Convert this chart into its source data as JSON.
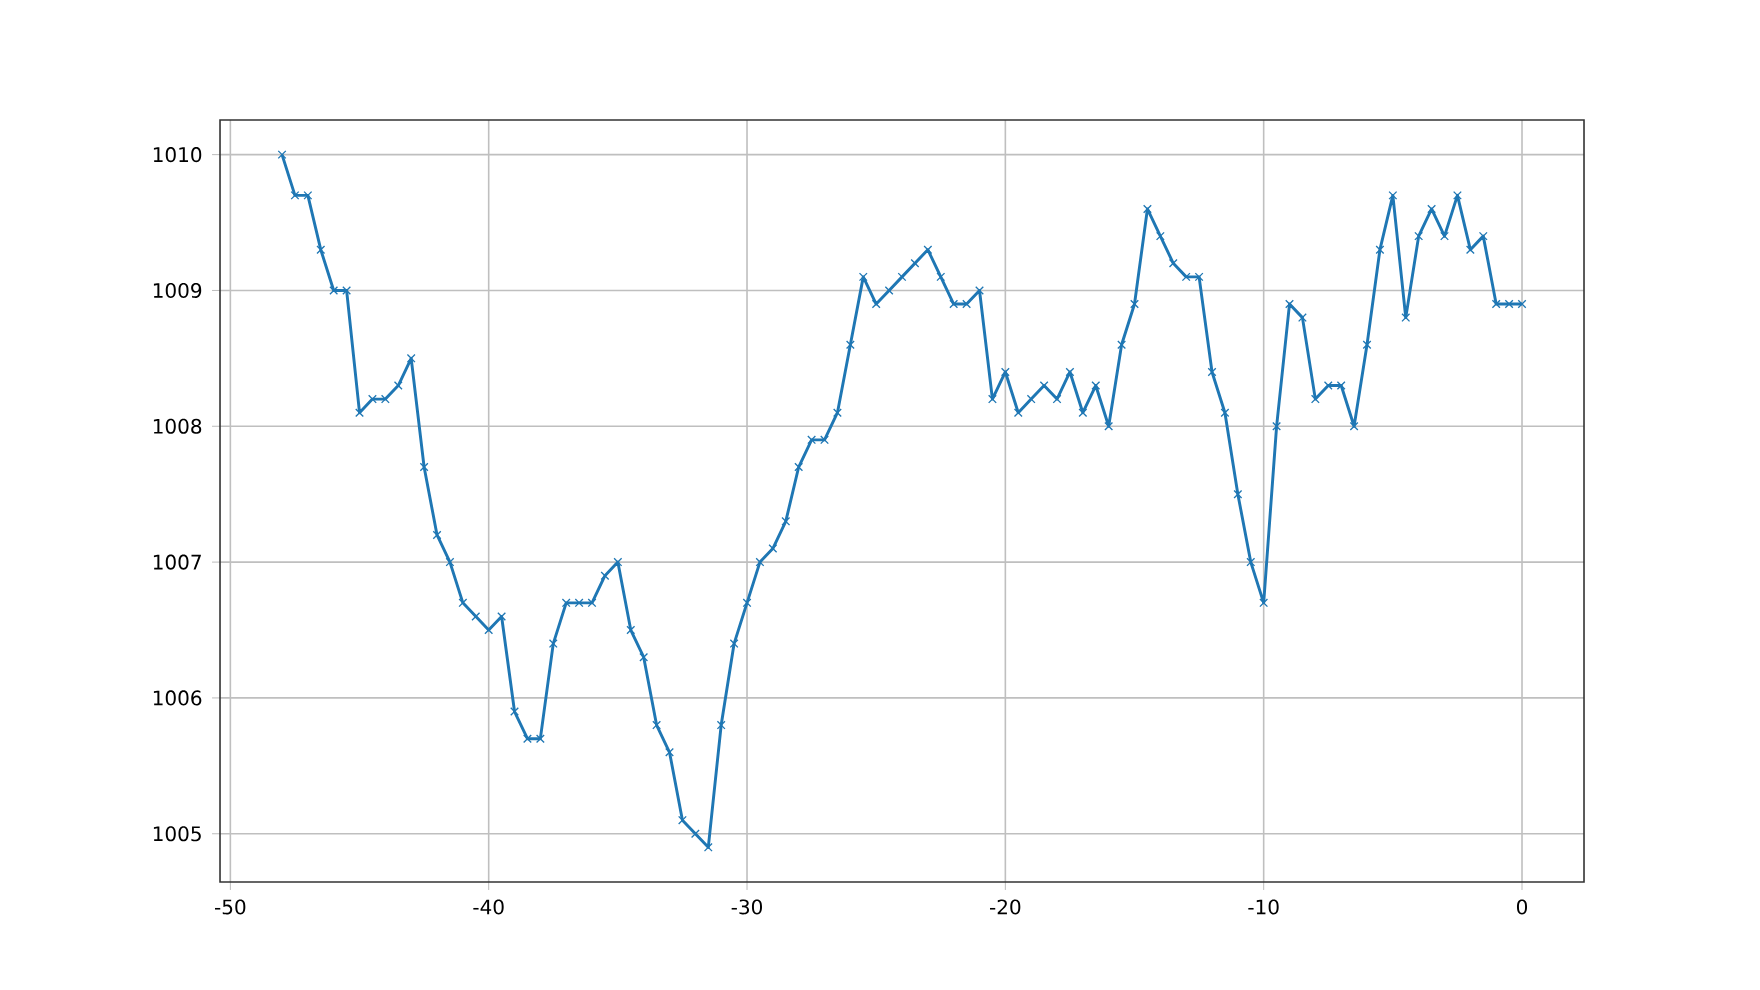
{
  "chart_data": {
    "type": "line",
    "x": [
      -48,
      -47.5,
      -47,
      -46.5,
      -46,
      -45.5,
      -45,
      -44.5,
      -44,
      -43.5,
      -43,
      -42.5,
      -42,
      -41.5,
      -41,
      -40.5,
      -40,
      -39.5,
      -39,
      -38.5,
      -38,
      -37.5,
      -37,
      -36.5,
      -36,
      -35.5,
      -35,
      -34.5,
      -34,
      -33.5,
      -33,
      -32.5,
      -32,
      -31.5,
      -31,
      -30.5,
      -30,
      -29.5,
      -29,
      -28.5,
      -28,
      -27.5,
      -27,
      -26.5,
      -26,
      -25.5,
      -25,
      -24.5,
      -24,
      -23.5,
      -23,
      -22.5,
      -22,
      -21.5,
      -21,
      -20.5,
      -20,
      -19.5,
      -19,
      -18.5,
      -18,
      -17.5,
      -17,
      -16.5,
      -16,
      -15.5,
      -15,
      -14.5,
      -14,
      -13.5,
      -13,
      -12.5,
      -12,
      -11.5,
      -11,
      -10.5,
      -10,
      -9.5,
      -9,
      -8.5,
      -8,
      -7.5,
      -7,
      -6.5,
      -6,
      -5.5,
      -5,
      -4.5,
      -4,
      -3.5,
      -3,
      -2.5,
      -2,
      -1.5,
      -1,
      -0.5,
      0
    ],
    "series": [
      {
        "color": "#1f77b4",
        "values": [
          1010,
          1009.7,
          1009.7,
          1009.3,
          1009.0,
          1009.0,
          1008.1,
          1008.2,
          1008.2,
          1008.3,
          1008.5,
          1007.7,
          1007.2,
          1007.0,
          1006.7,
          1006.6,
          1006.5,
          1006.6,
          1005.9,
          1005.7,
          1005.7,
          1006.4,
          1006.7,
          1006.7,
          1006.7,
          1006.9,
          1007.0,
          1006.5,
          1006.3,
          1005.8,
          1005.6,
          1005.1,
          1005.0,
          1004.9,
          1005.8,
          1006.4,
          1006.7,
          1007.0,
          1007.1,
          1007.3,
          1007.7,
          1007.9,
          1007.9,
          1008.1,
          1008.6,
          1009.1,
          1008.9,
          1009.0,
          1009.1,
          1009.2,
          1009.3,
          1009.1,
          1008.9,
          1008.9,
          1009.0,
          1008.2,
          1008.4,
          1008.1,
          1008.2,
          1008.3,
          1008.2,
          1008.4,
          1008.1,
          1008.3,
          1008.0,
          1008.6,
          1008.9,
          1009.6,
          1009.4,
          1009.2,
          1009.1,
          1009.1,
          1008.4,
          1008.1,
          1007.5,
          1007.0,
          1006.7,
          1008.0,
          1008.9,
          1008.8,
          1008.2,
          1008.3,
          1008.3,
          1008.0,
          1008.6,
          1009.3,
          1009.7,
          1008.8,
          1009.4,
          1009.6,
          1009.4,
          1009.7,
          1009.3,
          1009.4,
          1008.9,
          1008.9,
          1008.9
        ]
      }
    ],
    "xlim": [
      -50.4,
      2.4
    ],
    "ylim": [
      1004.645,
      1010.255
    ],
    "xticks": [
      -50,
      -40,
      -30,
      -20,
      -10,
      0
    ],
    "yticks": [
      1005,
      1006,
      1007,
      1008,
      1009,
      1010
    ],
    "grid": true,
    "marker": "cross",
    "line_style": "solid"
  }
}
